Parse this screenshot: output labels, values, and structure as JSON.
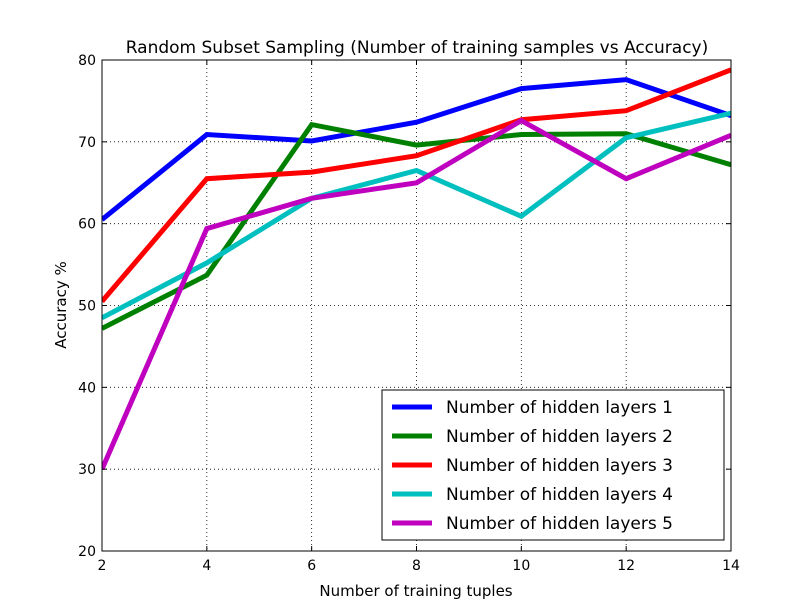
{
  "chart_data": {
    "type": "line",
    "title": "Random Subset Sampling (Number of training samples vs Accuracy)",
    "xlabel": "Number of training tuples",
    "ylabel": "Accuracy %",
    "x": [
      2,
      4,
      6,
      8,
      10,
      12,
      14
    ],
    "xlim": [
      2,
      14
    ],
    "ylim": [
      20,
      80
    ],
    "xticks": [
      "2",
      "4",
      "6",
      "8",
      "10",
      "12",
      "14"
    ],
    "yticks": [
      "20",
      "30",
      "40",
      "50",
      "60",
      "70",
      "80"
    ],
    "grid": true,
    "legend_position": "lower-right",
    "series": [
      {
        "name": "Number of hidden layers 1",
        "color": "#0000ff",
        "values": [
          60.5,
          70.9,
          70.1,
          72.4,
          76.5,
          77.6,
          73.2
        ]
      },
      {
        "name": "Number of hidden layers 2",
        "color": "#008000",
        "values": [
          47.2,
          53.7,
          72.1,
          69.6,
          70.9,
          71.0,
          67.2
        ]
      },
      {
        "name": "Number of hidden layers 3",
        "color": "#ff0000",
        "values": [
          50.5,
          65.5,
          66.3,
          68.3,
          72.7,
          73.8,
          78.8
        ]
      },
      {
        "name": "Number of hidden layers 4",
        "color": "#00bfbf",
        "values": [
          48.5,
          55.2,
          63.1,
          66.5,
          60.9,
          70.5,
          73.5
        ]
      },
      {
        "name": "Number of hidden layers 5",
        "color": "#bf00bf",
        "values": [
          30.0,
          59.4,
          63.1,
          65.0,
          72.6,
          65.5,
          70.8
        ]
      }
    ]
  }
}
